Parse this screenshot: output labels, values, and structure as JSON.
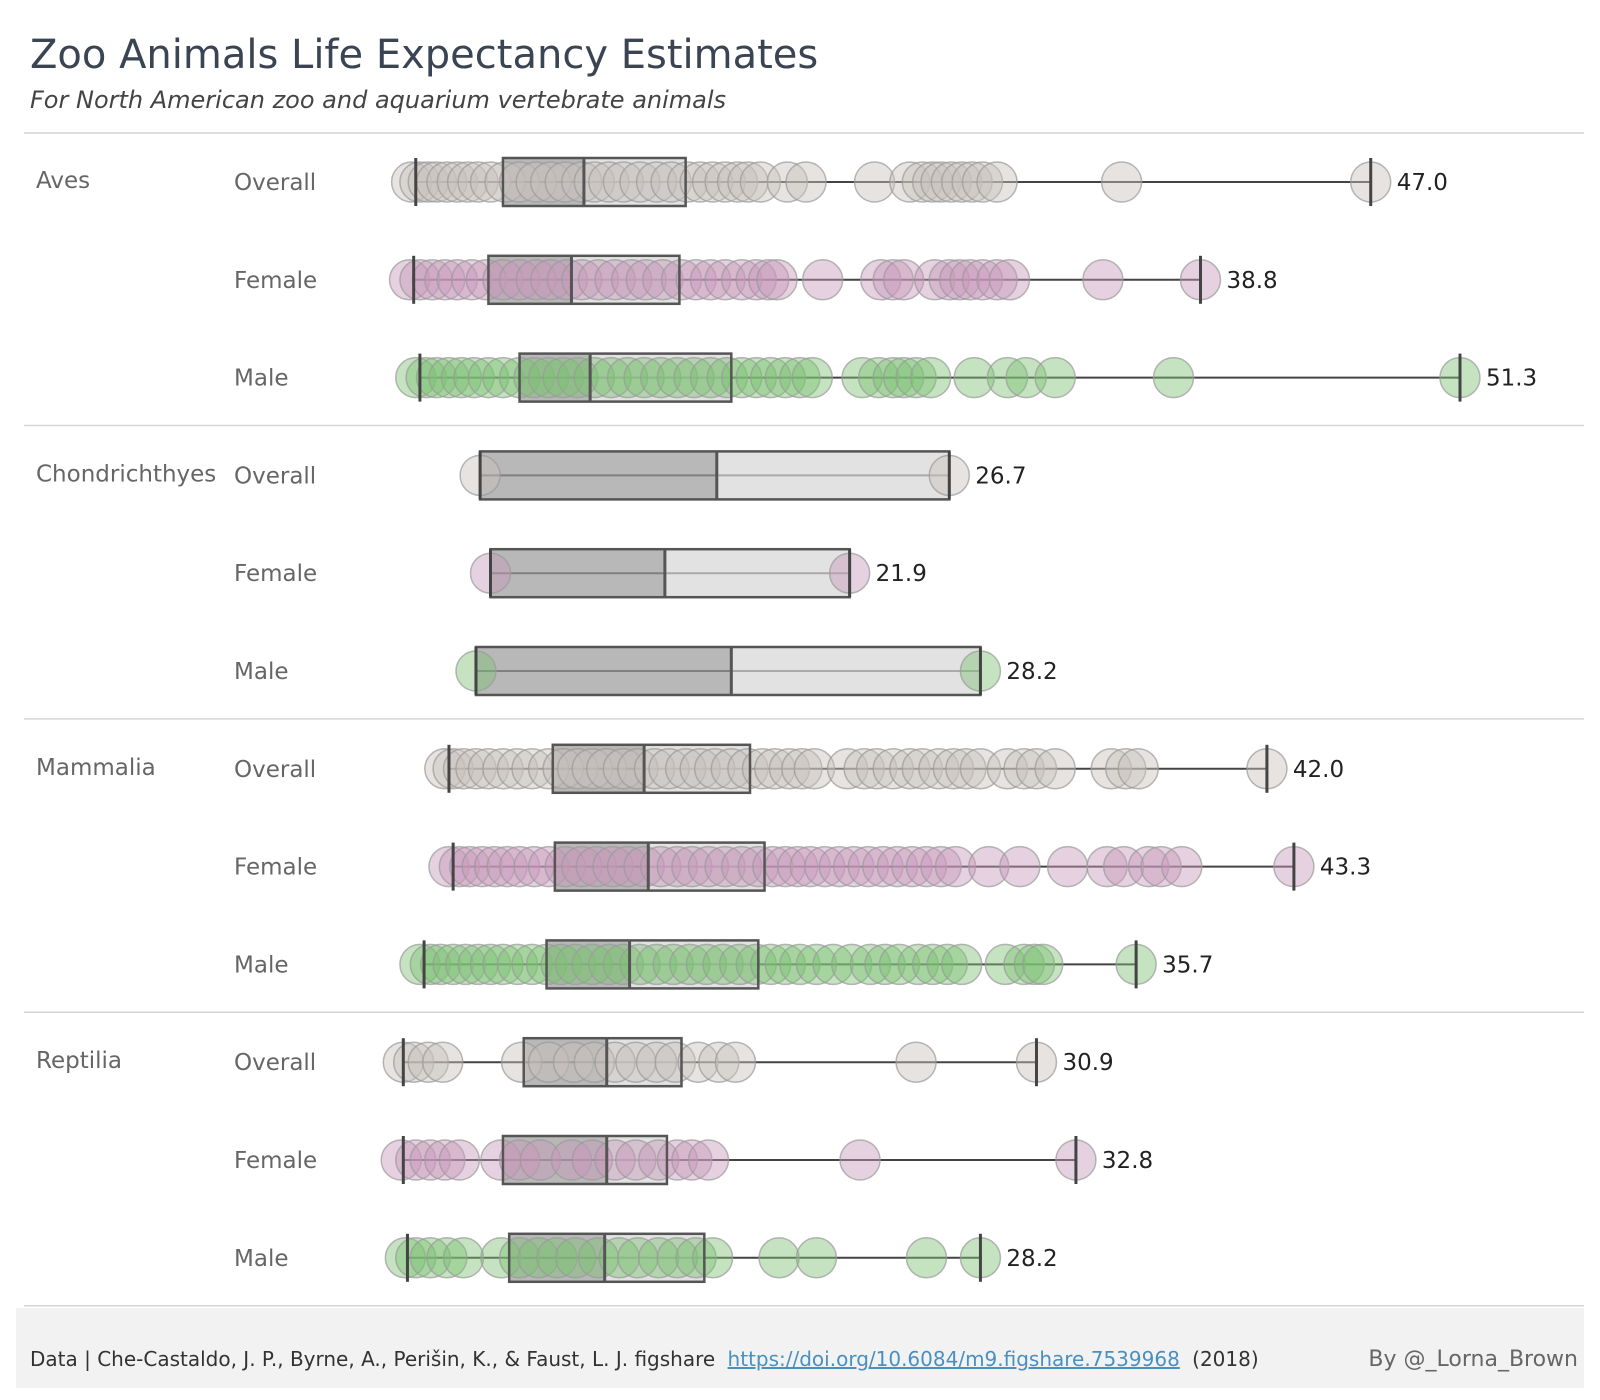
{
  "chart_data": {
    "type": "box-plot-with-points",
    "title": "Zoo Animals Life Expectancy Estimates",
    "subtitle": "For North American zoo and aquarium vertebrate animals",
    "x_unit": "years",
    "x_range": [
      0,
      55
    ],
    "colors": {
      "Overall": "#c8c1bd",
      "Female": "#c89abb",
      "Male": "#7fc076"
    },
    "groups": [
      {
        "name": "Aves",
        "rows": [
          {
            "label": "Overall",
            "min": 1.0,
            "q1": 5.2,
            "median": 9.1,
            "q3": 14.0,
            "max": 47.0,
            "max_label": "47.0",
            "points": [
              0.8,
              1.2,
              1.6,
              2.0,
              2.5,
              3.0,
              3.5,
              4.0,
              4.6,
              5.3,
              6.0,
              6.8,
              7.5,
              8.2,
              9.0,
              9.6,
              10.3,
              11.0,
              11.8,
              12.6,
              13.3,
              14.1,
              14.7,
              15.3,
              15.9,
              16.5,
              17.0,
              17.6,
              18.9,
              19.8,
              23.1,
              24.8,
              25.4,
              25.9,
              26.3,
              26.8,
              27.3,
              27.8,
              28.3,
              29.0,
              35.0,
              47.0
            ]
          },
          {
            "label": "Female",
            "min": 0.9,
            "q1": 4.5,
            "median": 8.5,
            "q3": 13.7,
            "max": 38.8,
            "max_label": "38.8",
            "points": [
              0.7,
              1.2,
              1.8,
              2.4,
              3.0,
              3.7,
              4.4,
              5.2,
              6.0,
              6.8,
              7.5,
              8.3,
              9.0,
              9.8,
              10.6,
              11.4,
              12.1,
              12.9,
              13.8,
              14.5,
              15.2,
              15.9,
              16.7,
              17.4,
              18.0,
              18.4,
              20.6,
              23.4,
              24.0,
              24.5,
              26.0,
              26.7,
              27.2,
              27.7,
              28.3,
              29.0,
              29.6,
              34.1,
              38.8
            ]
          },
          {
            "label": "Male",
            "min": 1.2,
            "q1": 6.0,
            "median": 9.4,
            "q3": 16.2,
            "max": 51.3,
            "max_label": "51.3",
            "points": [
              1.0,
              1.5,
              2.0,
              2.6,
              3.2,
              3.8,
              4.5,
              5.2,
              6.0,
              6.7,
              7.4,
              8.1,
              8.8,
              9.6,
              10.4,
              11.2,
              12.0,
              12.8,
              13.6,
              14.4,
              15.2,
              16.0,
              16.7,
              17.4,
              18.1,
              18.8,
              19.5,
              20.1,
              22.5,
              23.3,
              24.0,
              24.5,
              25.1,
              25.8,
              27.9,
              29.5,
              30.4,
              31.8,
              37.5,
              51.3
            ]
          }
        ]
      },
      {
        "name": "Chondrichthyes",
        "rows": [
          {
            "label": "Overall",
            "min": 4.1,
            "q1": 4.1,
            "median": 15.5,
            "q3": 26.7,
            "max": 26.7,
            "max_label": "26.7",
            "points": [
              4.1,
              26.7
            ]
          },
          {
            "label": "Female",
            "min": 4.6,
            "q1": 4.6,
            "median": 13.0,
            "q3": 21.9,
            "max": 21.9,
            "max_label": "21.9",
            "points": [
              4.6,
              21.9
            ]
          },
          {
            "label": "Male",
            "min": 3.9,
            "q1": 3.9,
            "median": 16.2,
            "q3": 28.2,
            "max": 28.2,
            "max_label": "28.2",
            "points": [
              3.9,
              28.2
            ]
          }
        ]
      },
      {
        "name": "Mammalia",
        "rows": [
          {
            "label": "Overall",
            "min": 2.6,
            "q1": 7.6,
            "median": 12.0,
            "q3": 17.1,
            "max": 42.0,
            "max_label": "42.0",
            "points": [
              2.4,
              2.8,
              3.3,
              3.9,
              4.5,
              5.2,
              5.9,
              6.6,
              7.4,
              8.1,
              8.8,
              9.5,
              10.2,
              11.0,
              11.7,
              12.5,
              13.2,
              14.0,
              14.7,
              15.4,
              16.2,
              17.0,
              17.7,
              18.3,
              19.0,
              19.6,
              20.2,
              21.8,
              22.6,
              23.2,
              24.0,
              24.8,
              25.4,
              26.2,
              26.9,
              27.5,
              28.2,
              29.5,
              30.3,
              30.9,
              31.8,
              34.5,
              35.2,
              35.8,
              42.0
            ]
          },
          {
            "label": "Female",
            "min": 2.8,
            "q1": 7.7,
            "median": 12.2,
            "q3": 17.8,
            "max": 43.3,
            "max_label": "43.3",
            "points": [
              2.6,
              3.1,
              3.6,
              4.2,
              4.8,
              5.4,
              6.0,
              6.7,
              7.4,
              8.2,
              9.0,
              9.7,
              10.5,
              11.2,
              12.0,
              12.8,
              13.6,
              14.3,
              15.1,
              15.9,
              16.7,
              17.5,
              18.2,
              18.8,
              19.4,
              20.0,
              20.7,
              21.4,
              22.1,
              22.8,
              23.5,
              24.2,
              24.9,
              25.6,
              26.3,
              27.0,
              28.6,
              30.1,
              32.4,
              34.3,
              35.1,
              36.3,
              36.9,
              37.9,
              43.3
            ]
          },
          {
            "label": "Male",
            "min": 1.4,
            "q1": 7.3,
            "median": 11.3,
            "q3": 17.5,
            "max": 35.7,
            "max_label": "35.7",
            "points": [
              1.2,
              1.7,
              2.2,
              2.8,
              3.4,
              4.0,
              4.6,
              5.2,
              5.9,
              6.6,
              7.3,
              8.0,
              8.7,
              9.5,
              10.3,
              11.0,
              11.8,
              12.6,
              13.4,
              14.2,
              15.0,
              15.8,
              16.6,
              17.4,
              18.1,
              18.8,
              19.5,
              20.3,
              21.1,
              22.0,
              22.9,
              23.6,
              24.3,
              25.2,
              25.9,
              26.6,
              27.3,
              29.4,
              30.3,
              30.8,
              31.2,
              35.7
            ]
          }
        ]
      },
      {
        "name": "Reptilia",
        "rows": [
          {
            "label": "Overall",
            "min": 0.4,
            "q1": 6.2,
            "median": 10.2,
            "q3": 13.8,
            "max": 30.9,
            "max_label": "30.9",
            "points": [
              0.4,
              0.9,
              1.6,
              2.3,
              6.1,
              7.4,
              8.6,
              9.6,
              10.6,
              11.6,
              12.6,
              13.5,
              14.6,
              15.6,
              16.4,
              25.1,
              30.9
            ]
          },
          {
            "label": "Female",
            "min": 0.4,
            "q1": 5.2,
            "median": 10.2,
            "q3": 13.1,
            "max": 32.8,
            "max_label": "32.8",
            "points": [
              0.3,
              1.0,
              1.7,
              2.4,
              3.1,
              5.1,
              6.0,
              7.0,
              8.5,
              9.5,
              10.6,
              11.6,
              12.7,
              13.6,
              14.3,
              15.1,
              22.4,
              32.8
            ]
          },
          {
            "label": "Male",
            "min": 0.6,
            "q1": 5.5,
            "median": 10.1,
            "q3": 14.9,
            "max": 28.2,
            "max_label": "28.2",
            "points": [
              0.5,
              1.0,
              1.7,
              2.5,
              3.3,
              5.1,
              6.0,
              6.9,
              7.8,
              8.7,
              9.8,
              10.8,
              11.7,
              12.7,
              13.6,
              14.5,
              15.3,
              18.5,
              20.3,
              25.6,
              28.2
            ]
          }
        ]
      }
    ]
  },
  "footer": {
    "data_prefix": "Data | Che-Castaldo, J. P., Byrne, A., Perišin, K., & Faust, L. J. figshare",
    "link_text": "https://doi.org/10.6084/m9.figshare.7539968",
    "year_text": "(2018)",
    "byline": "By @_Lorna_Brown"
  }
}
